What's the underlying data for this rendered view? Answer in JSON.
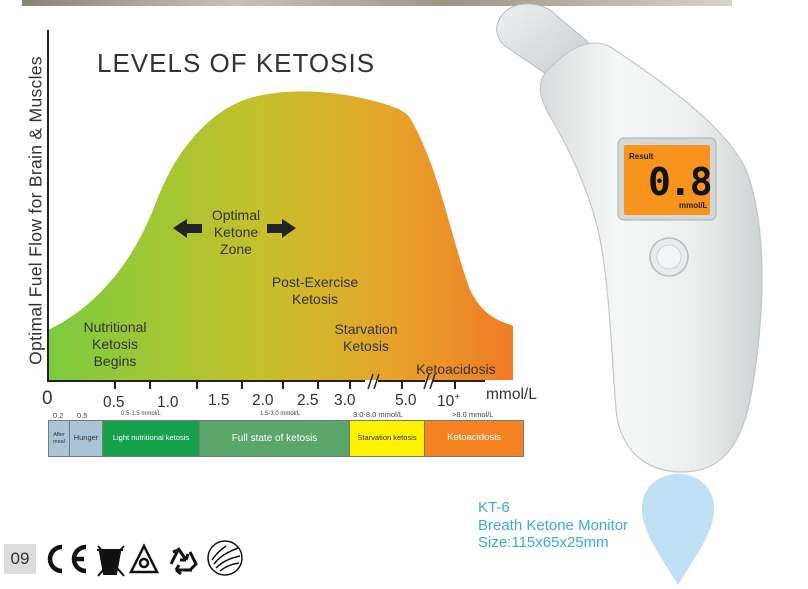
{
  "title": "LEVELS OF KETOSIS",
  "y_axis_label": "Optimal Fuel Flow for Brain & Muscles",
  "x_axis_unit": "mmol/L",
  "x_ticks": [
    "0",
    "0.5",
    "1.0",
    "1.5",
    "2.0",
    "2.5",
    "3.0",
    "5.0",
    "10",
    "+"
  ],
  "zone_labels": {
    "nutritional": [
      "Nutritional",
      "Ketosis",
      "Begins"
    ],
    "optimal": [
      "Optimal",
      "Ketone",
      "Zone"
    ],
    "post_exercise": [
      "Post-Exercise",
      "Ketosis"
    ],
    "starvation": [
      "Starvation",
      "Ketosis"
    ],
    "ketoacidosis": "Ketoacidosis"
  },
  "range_labels": [
    "0.2",
    "0.5",
    "0.5-1.5 mmol/L",
    "1.5-3.0 mmol/L",
    "3.0-8.0 mmol/L",
    ">8.0 mmol/L"
  ],
  "bar_segments": [
    {
      "label": "After meal",
      "color": "#a9c4d6",
      "text_color": "#333333"
    },
    {
      "label": "Hunger",
      "color": "#a9c4d6",
      "text_color": "#333333"
    },
    {
      "label": "Light nutritional ketosis",
      "color": "#15a04a",
      "text_color": "#ffffff"
    },
    {
      "label": "Full state of ketosis",
      "color": "#5aa66a",
      "text_color": "#ffffff"
    },
    {
      "label": "Starvation ketosis",
      "color": "#fff200",
      "text_color": "#333333"
    },
    {
      "label": "Ketoacidosis",
      "color": "#f58220",
      "text_color": "#ffffff"
    }
  ],
  "device": {
    "screen_label": "Result",
    "reading": "0.8",
    "unit": "mmol/L",
    "screen_color": "#f7941d"
  },
  "product": {
    "model": "KT-6",
    "name": "Breath Ketone Monitor",
    "size": "Size:115x65x25mm"
  },
  "page_number": "09",
  "certifications": [
    "ce-mark-icon",
    "weee-bin-icon",
    "hazard-triangle-icon",
    "recycle-icon",
    "fda-eagle-icon"
  ],
  "colors": {
    "curve_start": "#7ccc3e",
    "curve_mid": "#c9c02a",
    "curve_end": "#f07a26",
    "accent_blue": "#3aa8e0"
  }
}
